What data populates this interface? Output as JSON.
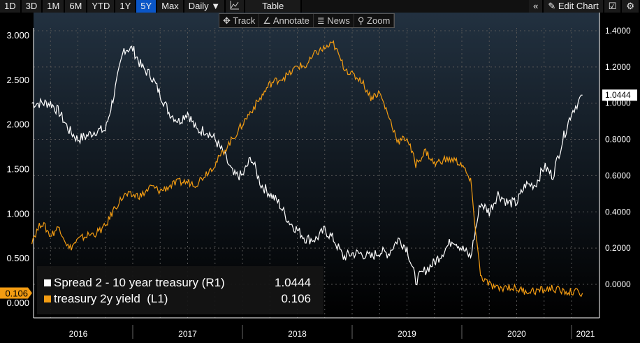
{
  "toolbar": {
    "ranges": [
      "1D",
      "3D",
      "1M",
      "6M",
      "YTD",
      "1Y",
      "5Y",
      "Max"
    ],
    "active": "5Y",
    "frequency": "Daily ▼",
    "chart_type_icon": "line-chart-icon",
    "table": "Table",
    "collapse": "«",
    "edit": "Edit Chart",
    "edit_icon": "pencil-icon",
    "settings_icon": "gear-icon"
  },
  "subtoolbar": {
    "track": "✥ Track",
    "annotate": "∠ Annotate",
    "news": "≣ News",
    "zoom": "⚲ Zoom"
  },
  "legend": [
    {
      "label": "Spread 2 - 10 year treasury (R1)",
      "value": "1.0444",
      "color": "#ffffff"
    },
    {
      "label": "treasury 2y yield  (L1)",
      "value": "0.106",
      "color": "#f39c12"
    }
  ],
  "last_labels": {
    "right": "1.0444",
    "left": "0.106"
  },
  "chart_data": {
    "type": "line",
    "x_ticks": [
      "2016",
      "2017",
      "2018",
      "2019",
      "2020",
      "2021"
    ],
    "left_axis": {
      "ticks": [
        "0.000",
        "0.500",
        "1.000",
        "1.500",
        "2.000",
        "2.500",
        "3.000"
      ],
      "range": [
        0,
        3
      ]
    },
    "right_axis": {
      "ticks": [
        "0.0000",
        "0.2000",
        "0.4000",
        "0.6000",
        "0.8000",
        "1.0000",
        "1.2000",
        "1.4000"
      ],
      "range": [
        0,
        1.4
      ]
    },
    "series": [
      {
        "name": "Spread 2 - 10 year treasury (R1)",
        "axis": "right",
        "color": "#ffffff",
        "x": [
          2016.08,
          2016.17,
          2016.25,
          2016.33,
          2016.42,
          2016.5,
          2016.58,
          2016.67,
          2016.75,
          2016.83,
          2016.92,
          2017.0,
          2017.08,
          2017.17,
          2017.25,
          2017.33,
          2017.42,
          2017.5,
          2017.58,
          2017.67,
          2017.75,
          2017.83,
          2017.92,
          2018.0,
          2018.08,
          2018.17,
          2018.25,
          2018.33,
          2018.42,
          2018.5,
          2018.58,
          2018.67,
          2018.75,
          2018.83,
          2018.92,
          2019.0,
          2019.08,
          2019.17,
          2019.25,
          2019.33,
          2019.42,
          2019.5,
          2019.58,
          2019.67,
          2019.75,
          2019.83,
          2019.92,
          2020.0,
          2020.08,
          2020.17,
          2020.25,
          2020.33,
          2020.42,
          2020.5,
          2020.58,
          2020.67,
          2020.75,
          2020.83,
          2020.92,
          2021.0,
          2021.1
        ],
        "values": [
          1.0,
          1.0,
          1.0,
          0.95,
          0.85,
          0.8,
          0.82,
          0.85,
          0.85,
          1.05,
          1.3,
          1.3,
          1.2,
          1.15,
          1.05,
          0.95,
          0.9,
          0.95,
          0.85,
          0.85,
          0.8,
          0.72,
          0.6,
          0.6,
          0.7,
          0.55,
          0.5,
          0.45,
          0.35,
          0.3,
          0.25,
          0.25,
          0.3,
          0.25,
          0.15,
          0.17,
          0.17,
          0.15,
          0.18,
          0.17,
          0.25,
          0.2,
          0.02,
          0.08,
          0.12,
          0.18,
          0.25,
          0.2,
          0.15,
          0.45,
          0.4,
          0.5,
          0.45,
          0.45,
          0.55,
          0.55,
          0.65,
          0.6,
          0.8,
          0.95,
          1.0444
        ]
      },
      {
        "name": "treasury 2y yield (L1)",
        "axis": "left",
        "color": "#f39c12",
        "x": [
          2016.08,
          2016.17,
          2016.25,
          2016.33,
          2016.42,
          2016.5,
          2016.58,
          2016.67,
          2016.75,
          2016.83,
          2016.92,
          2017.0,
          2017.08,
          2017.17,
          2017.25,
          2017.33,
          2017.42,
          2017.5,
          2017.58,
          2017.67,
          2017.75,
          2017.83,
          2017.92,
          2018.0,
          2018.08,
          2018.17,
          2018.25,
          2018.33,
          2018.42,
          2018.5,
          2018.58,
          2018.67,
          2018.75,
          2018.83,
          2018.92,
          2019.0,
          2019.08,
          2019.17,
          2019.25,
          2019.33,
          2019.42,
          2019.5,
          2019.58,
          2019.67,
          2019.75,
          2019.83,
          2019.92,
          2020.0,
          2020.08,
          2020.17,
          2020.25,
          2020.33,
          2020.42,
          2020.5,
          2020.58,
          2020.67,
          2020.75,
          2020.83,
          2020.92,
          2021.0,
          2021.1
        ],
        "values": [
          0.7,
          0.9,
          0.75,
          0.85,
          0.6,
          0.7,
          0.75,
          0.78,
          0.85,
          1.05,
          1.2,
          1.2,
          1.2,
          1.3,
          1.25,
          1.3,
          1.35,
          1.35,
          1.33,
          1.45,
          1.55,
          1.7,
          1.85,
          2.0,
          2.15,
          2.3,
          2.45,
          2.5,
          2.55,
          2.65,
          2.65,
          2.8,
          2.85,
          2.9,
          2.65,
          2.55,
          2.5,
          2.3,
          2.35,
          2.1,
          1.8,
          1.85,
          1.55,
          1.7,
          1.55,
          1.6,
          1.6,
          1.55,
          1.35,
          0.3,
          0.2,
          0.15,
          0.18,
          0.15,
          0.13,
          0.13,
          0.14,
          0.16,
          0.12,
          0.12,
          0.106
        ]
      }
    ]
  }
}
